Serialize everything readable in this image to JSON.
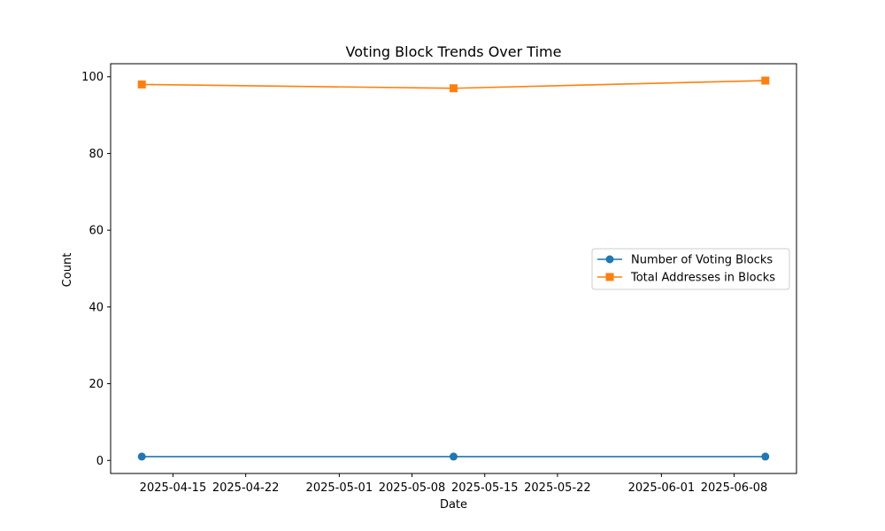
{
  "chart_data": {
    "type": "line",
    "title": "Voting Block Trends Over Time",
    "xlabel": "Date",
    "ylabel": "Count",
    "x": [
      "2025-04-12",
      "2025-05-12",
      "2025-06-11"
    ],
    "xlim": [
      "2025-04-09",
      "2025-06-14"
    ],
    "ylim": [
      -3.4,
      103.4
    ],
    "x_ticks": [
      "2025-04-15",
      "2025-04-22",
      "2025-05-01",
      "2025-05-08",
      "2025-05-15",
      "2025-05-22",
      "2025-06-01",
      "2025-06-08"
    ],
    "y_ticks": [
      0,
      20,
      40,
      60,
      80,
      100
    ],
    "grid": false,
    "legend_position": "center-right",
    "series": [
      {
        "name": "Number of Voting Blocks",
        "values": [
          1,
          1,
          1
        ],
        "color": "#1f77b4",
        "marker": "circle"
      },
      {
        "name": "Total Addresses in Blocks",
        "values": [
          98,
          97,
          99
        ],
        "color": "#ff7f0e",
        "marker": "square"
      }
    ]
  }
}
